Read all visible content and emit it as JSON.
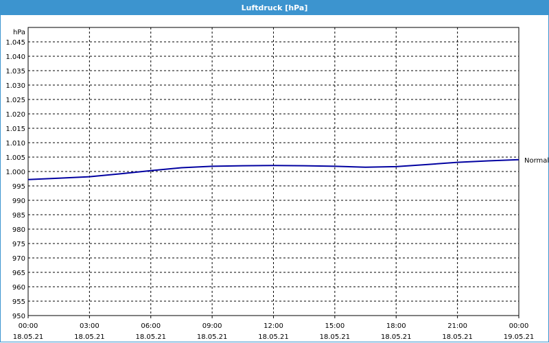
{
  "window": {
    "title": "Luftdruck [hPa]"
  },
  "chart_data": {
    "type": "line",
    "title": "Luftdruck [hPa]",
    "ylabel": "hPa",
    "ylim": [
      950,
      1050
    ],
    "yticks": [
      "950",
      "955",
      "960",
      "965",
      "970",
      "975",
      "980",
      "985",
      "990",
      "995",
      "1.000",
      "1.005",
      "1.010",
      "1.015",
      "1.020",
      "1.025",
      "1.030",
      "1.035",
      "1.040",
      "1.045"
    ],
    "xticks": [
      {
        "time": "00:00",
        "date": "18.05.21"
      },
      {
        "time": "03:00",
        "date": "18.05.21"
      },
      {
        "time": "06:00",
        "date": "18.05.21"
      },
      {
        "time": "09:00",
        "date": "18.05.21"
      },
      {
        "time": "12:00",
        "date": "18.05.21"
      },
      {
        "time": "15:00",
        "date": "18.05.21"
      },
      {
        "time": "18:00",
        "date": "18.05.21"
      },
      {
        "time": "21:00",
        "date": "18.05.21"
      },
      {
        "time": "00:00",
        "date": "19.05.21"
      }
    ],
    "grid": true,
    "series": [
      {
        "name": "Normal",
        "color": "#0000a0",
        "x": [
          "18.05.21 00:00",
          "18.05.21 01:30",
          "18.05.21 03:00",
          "18.05.21 04:30",
          "18.05.21 06:00",
          "18.05.21 07:30",
          "18.05.21 09:00",
          "18.05.21 10:30",
          "18.05.21 12:00",
          "18.05.21 13:30",
          "18.05.21 15:00",
          "18.05.21 16:30",
          "18.05.21 18:00",
          "18.05.21 19:30",
          "18.05.21 21:00",
          "18.05.21 22:30",
          "19.05.21 00:00"
        ],
        "values": [
          997.2,
          997.7,
          998.2,
          999.2,
          1000.3,
          1001.3,
          1001.8,
          1002.0,
          1002.1,
          1002.0,
          1001.8,
          1001.5,
          1001.7,
          1002.4,
          1003.2,
          1003.7,
          1004.1
        ]
      }
    ]
  }
}
